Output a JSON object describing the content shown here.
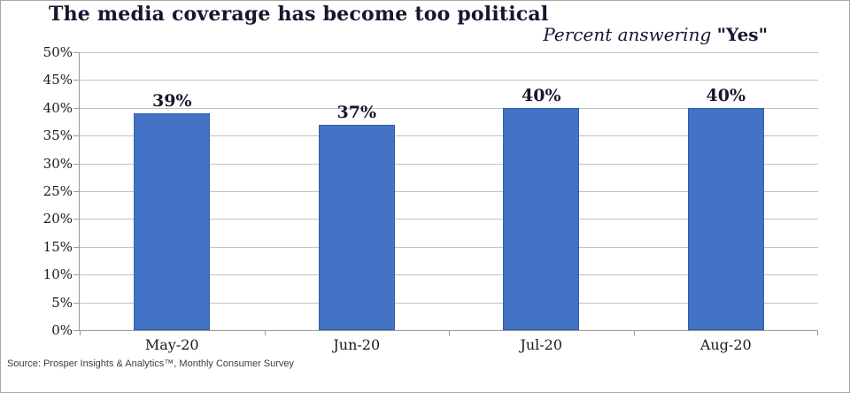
{
  "chart_data": {
    "type": "bar",
    "title": "The media coverage has become too political",
    "subtitle": {
      "prefix": "Percent answering ",
      "emphasis": "\"Yes\""
    },
    "categories": [
      "May-20",
      "Jun-20",
      "Jul-20",
      "Aug-20"
    ],
    "values": [
      39,
      37,
      40,
      40
    ],
    "value_labels": [
      "39%",
      "37%",
      "40%",
      "40%"
    ],
    "ytick_labels": [
      "0%",
      "5%",
      "10%",
      "15%",
      "20%",
      "25%",
      "30%",
      "35%",
      "40%",
      "45%",
      "50%"
    ],
    "ylim": [
      0,
      50
    ],
    "grid": true,
    "legend": "none",
    "xlabel": "",
    "ylabel": ""
  },
  "colors": {
    "bar": "#4472C4",
    "bar_border": "#3160ad",
    "gridline": "#c2c2c2",
    "axis": "#9a9a9a",
    "title_text": "#16162e",
    "border": "#a8a8a8"
  },
  "footer": {
    "source": "Source: Prosper Insights & Analytics™, Monthly Consumer Survey"
  }
}
